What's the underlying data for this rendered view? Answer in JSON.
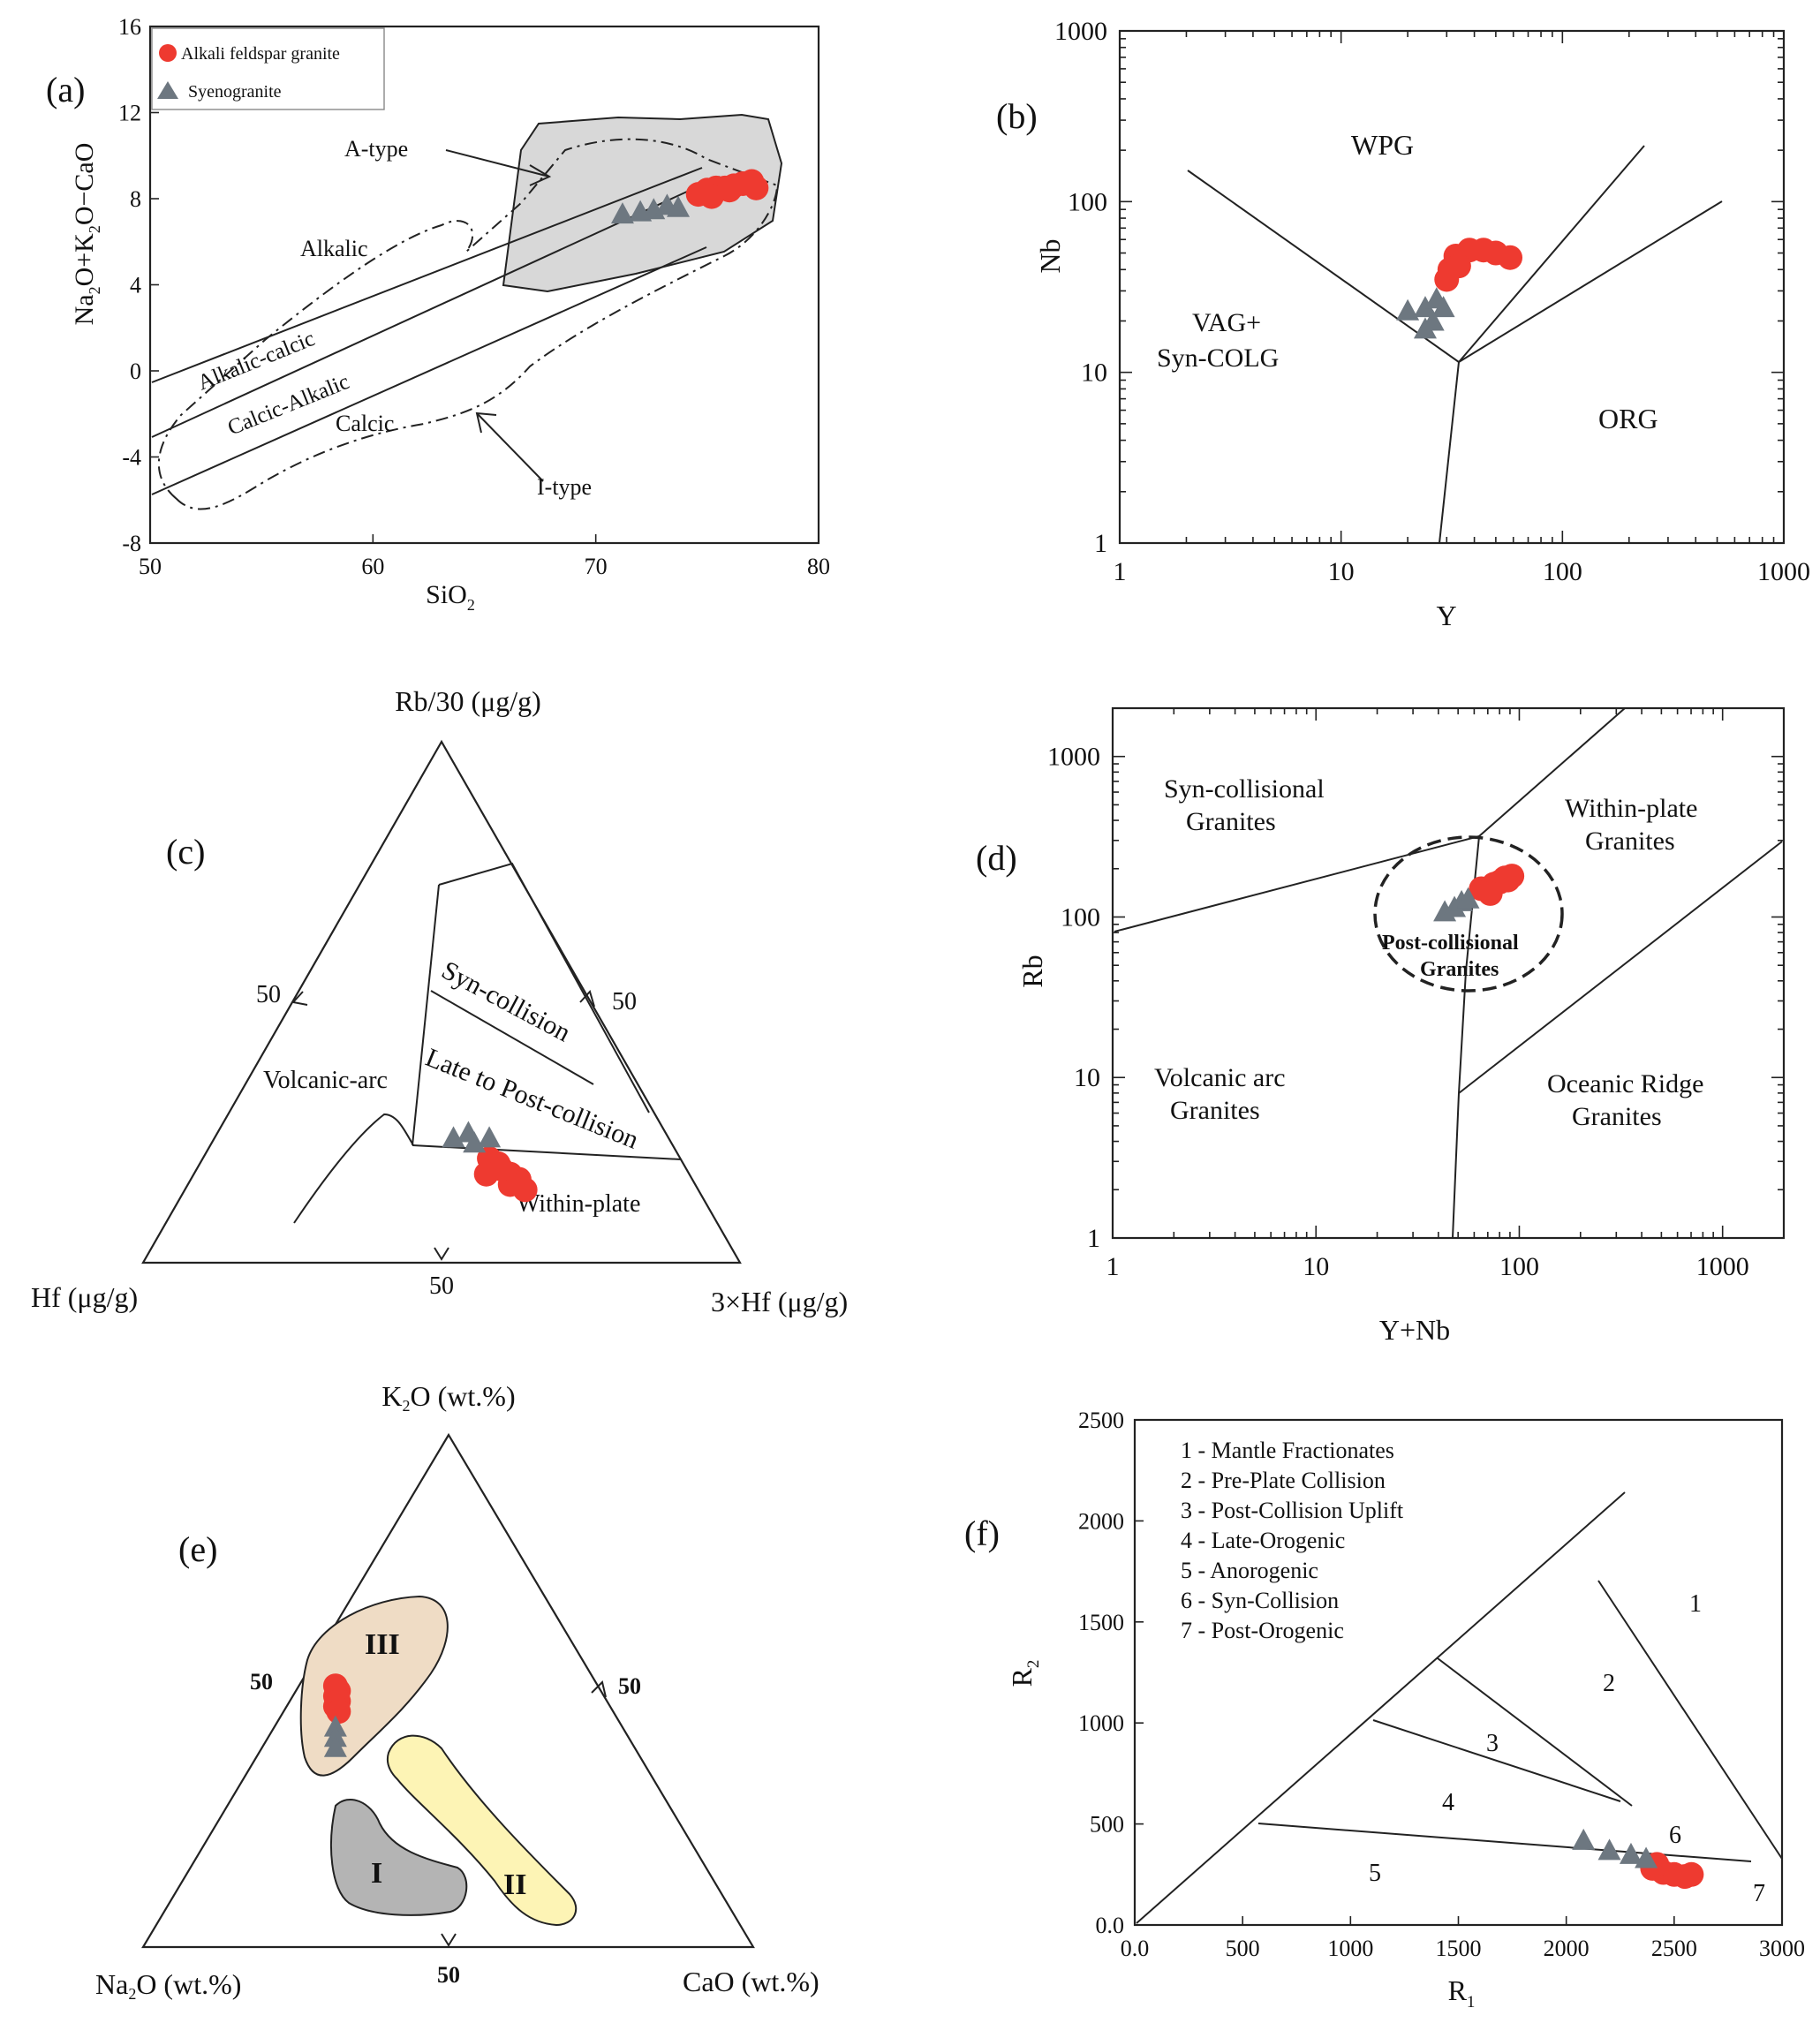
{
  "chart_data": [
    {
      "id": "a",
      "type": "scatter",
      "panel_label": "(a)",
      "xlabel": "SiO",
      "xlabel_sub": "2",
      "ylabel": [
        "Na",
        "2",
        "O+K",
        "2",
        "O−CaO"
      ],
      "xlim": [
        50,
        80
      ],
      "ylim": [
        -8,
        16
      ],
      "xticks": [
        "50",
        "60",
        "70",
        "80"
      ],
      "yticks": [
        "-8",
        "-4",
        "0",
        "4",
        "8",
        "12",
        "16"
      ],
      "legend": [
        "Alkali feldspar granite",
        "Syenogranite"
      ],
      "region_labels": [
        "A-type",
        "I-type",
        "Alkalic",
        "Alkalic-calcic",
        "Calcic-Alkalic",
        "Calcic"
      ],
      "series": [
        {
          "name": "Alkali feldspar granite",
          "marker": "circle",
          "color": "#ee3a30",
          "points": [
            [
              74.6,
              8.2
            ],
            [
              75,
              8.4
            ],
            [
              75.4,
              8.5
            ],
            [
              75.8,
              8.5
            ],
            [
              76.2,
              8.6
            ],
            [
              76.6,
              8.7
            ],
            [
              77.0,
              8.8
            ],
            [
              75.2,
              8.1
            ],
            [
              76.0,
              8.4
            ],
            [
              77.2,
              8.5
            ]
          ]
        },
        {
          "name": "Syenogranite",
          "marker": "triangle",
          "color": "#6d7780",
          "points": [
            [
              71.2,
              7.3
            ],
            [
              72.0,
              7.4
            ],
            [
              72.6,
              7.5
            ],
            [
              73.2,
              7.7
            ],
            [
              73.7,
              7.6
            ]
          ]
        }
      ]
    },
    {
      "id": "b",
      "type": "scatter",
      "panel_label": "(b)",
      "scale": "log-log",
      "xlabel": "Y",
      "ylabel": "Nb",
      "xlim": [
        1,
        1000
      ],
      "ylim": [
        1,
        1000
      ],
      "xticks": [
        "1",
        "10",
        "100",
        "1000"
      ],
      "yticks": [
        "1",
        "10",
        "100",
        "1000"
      ],
      "region_labels": [
        "WPG",
        "VAG+",
        "Syn-COLG",
        "ORG"
      ],
      "series": [
        {
          "name": "Alkali feldspar granite",
          "marker": "circle",
          "color": "#ee3a30",
          "points": [
            [
              33,
              48
            ],
            [
              38,
              52
            ],
            [
              44,
              52
            ],
            [
              50,
              50
            ],
            [
              58,
              47
            ],
            [
              31,
              40
            ],
            [
              30,
              35
            ],
            [
              34,
              42
            ]
          ]
        },
        {
          "name": "Syenogranite",
          "marker": "triangle",
          "color": "#6d7780",
          "points": [
            [
              20,
              23
            ],
            [
              24,
              24
            ],
            [
              27,
              27
            ],
            [
              29,
              24
            ],
            [
              26,
              20
            ],
            [
              24,
              18
            ]
          ]
        }
      ]
    },
    {
      "id": "c",
      "type": "ternary",
      "panel_label": "(c)",
      "apices": {
        "top": "Rb/30 (μg/g)",
        "left": "Hf (μg/g)",
        "right": "3×Hf (μg/g)"
      },
      "axis_marks": [
        "50",
        "50",
        "50"
      ],
      "region_labels": [
        "Syn-collision",
        "Late to Post-collision",
        "Volcanic-arc",
        "Within-plate"
      ],
      "series": [
        {
          "name": "Alkali feldspar granite",
          "marker": "circle",
          "color": "#ee3a30",
          "points_top_right": [
            [
              0.2,
              0.48
            ],
            [
              0.19,
              0.5
            ],
            [
              0.17,
              0.53
            ],
            [
              0.16,
              0.55
            ],
            [
              0.15,
              0.54
            ],
            [
              0.18,
              0.51
            ],
            [
              0.14,
              0.57
            ],
            [
              0.17,
              0.49
            ]
          ]
        },
        {
          "name": "Syenogranite",
          "marker": "triangle",
          "color": "#6d7780",
          "points_top_right": [
            [
              0.24,
              0.4
            ],
            [
              0.25,
              0.42
            ],
            [
              0.23,
              0.44
            ],
            [
              0.24,
              0.46
            ]
          ]
        }
      ]
    },
    {
      "id": "d",
      "type": "scatter",
      "panel_label": "(d)",
      "scale": "log-log",
      "xlabel": "Y+Nb",
      "ylabel": "Rb",
      "xlim": [
        1,
        2000
      ],
      "ylim": [
        1,
        2000
      ],
      "xticks": [
        "1",
        "10",
        "100",
        "1000"
      ],
      "yticks": [
        "1",
        "10",
        "100",
        "1000"
      ],
      "region_labels": [
        [
          "Syn-collisional",
          "Granites"
        ],
        [
          "Within-plate",
          "Granites"
        ],
        [
          "Volcanic arc",
          "Granites"
        ],
        [
          "Oceanic Ridge",
          "Granites"
        ],
        [
          "Post-collisional",
          "Granites"
        ]
      ],
      "series": [
        {
          "name": "Alkali feldspar granite",
          "marker": "circle",
          "color": "#ee3a30",
          "points": [
            [
              65,
              150
            ],
            [
              70,
              145
            ],
            [
              75,
              160
            ],
            [
              80,
              165
            ],
            [
              85,
              175
            ],
            [
              92,
              180
            ],
            [
              88,
              170
            ],
            [
              72,
              140
            ]
          ]
        },
        {
          "name": "Syenogranite",
          "marker": "triangle",
          "color": "#6d7780",
          "points": [
            [
              43,
              108
            ],
            [
              48,
              115
            ],
            [
              52,
              125
            ],
            [
              56,
              130
            ]
          ]
        }
      ]
    },
    {
      "id": "e",
      "type": "ternary",
      "panel_label": "(e)",
      "apices": {
        "top": "K₂O (wt.%)",
        "left": "Na₂O (wt.%)",
        "right": "CaO (wt.%)"
      },
      "axis_marks": [
        "50",
        "50",
        "50"
      ],
      "region_labels": [
        "III",
        "I",
        "II"
      ],
      "series": [
        {
          "name": "Alkali feldspar granite",
          "marker": "circle",
          "color": "#ee3a30",
          "points_top_right": [
            [
              0.51,
              0.06
            ],
            [
              0.5,
              0.07
            ],
            [
              0.49,
              0.07
            ],
            [
              0.48,
              0.08
            ],
            [
              0.47,
              0.08
            ],
            [
              0.46,
              0.09
            ]
          ]
        },
        {
          "name": "Syenogranite",
          "marker": "triangle",
          "color": "#6d7780",
          "points_top_right": [
            [
              0.43,
              0.1
            ],
            [
              0.41,
              0.11
            ],
            [
              0.39,
              0.12
            ]
          ]
        }
      ]
    },
    {
      "id": "f",
      "type": "scatter",
      "panel_label": "(f)",
      "xlabel": "R",
      "xlabel_sub": "1",
      "ylabel": "R",
      "ylabel_sub": "2",
      "xlim": [
        0,
        3000
      ],
      "ylim": [
        0,
        2500
      ],
      "xticks": [
        "0.0",
        "500",
        "1000",
        "1500",
        "2000",
        "2500",
        "3000"
      ],
      "yticks": [
        "0.0",
        "500",
        "1000",
        "1500",
        "2000",
        "2500"
      ],
      "legend_text": [
        "1 - Mantle Fractionates",
        "2 - Pre-Plate Collision",
        "3 - Post-Collision Uplift",
        "4 - Late-Orogenic",
        "5 - Anorogenic",
        "6 - Syn-Collision",
        "7 - Post-Orogenic"
      ],
      "region_numbers": [
        "1",
        "2",
        "3",
        "4",
        "5",
        "6",
        "7"
      ],
      "series": [
        {
          "name": "Alkali feldspar granite",
          "marker": "circle",
          "color": "#ee3a30",
          "points": [
            [
              2400,
              280
            ],
            [
              2450,
              260
            ],
            [
              2500,
              250
            ],
            [
              2550,
              240
            ],
            [
              2580,
              250
            ],
            [
              2420,
              300
            ]
          ]
        },
        {
          "name": "Syenogranite",
          "marker": "triangle",
          "color": "#6d7780",
          "points": [
            [
              2080,
              420
            ],
            [
              2200,
              370
            ],
            [
              2300,
              350
            ],
            [
              2370,
              330
            ]
          ]
        }
      ]
    }
  ]
}
